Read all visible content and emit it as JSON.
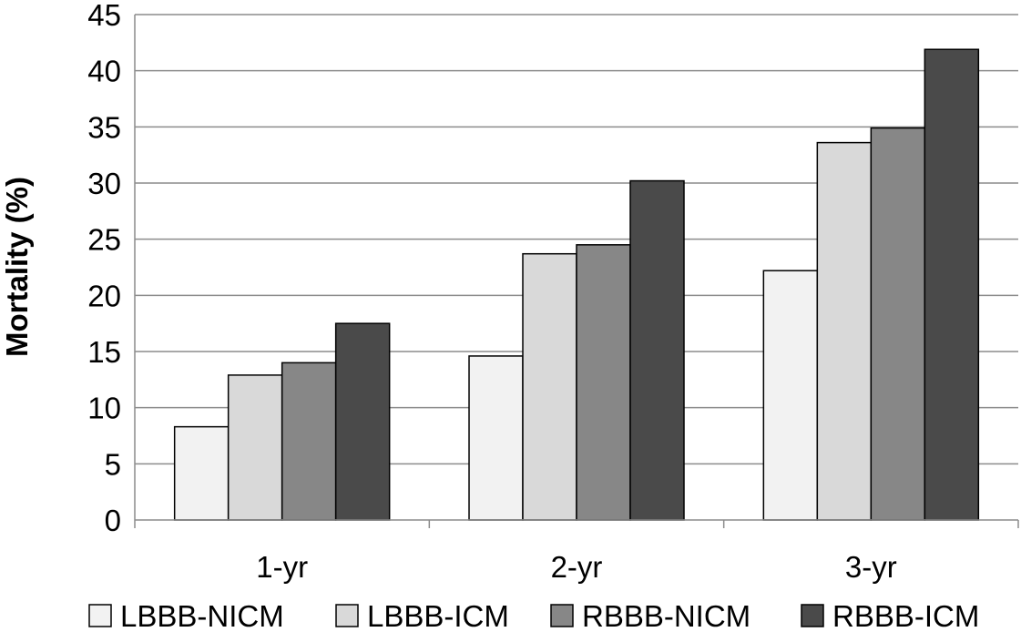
{
  "chart_data": {
    "type": "bar",
    "title": "",
    "xlabel": "",
    "ylabel": "Mortality (%)",
    "ylim": [
      0,
      45
    ],
    "yticks": [
      0,
      5,
      10,
      15,
      20,
      25,
      30,
      35,
      40,
      45
    ],
    "grid": true,
    "legend_position": "bottom",
    "categories": [
      "1-yr",
      "2-yr",
      "3-yr"
    ],
    "series": [
      {
        "name": "LBBB-NICM",
        "color": "#f2f2f2",
        "values": [
          8.3,
          14.6,
          22.2
        ]
      },
      {
        "name": "LBBB-ICM",
        "color": "#d9d9d9",
        "values": [
          12.9,
          23.7,
          33.6
        ]
      },
      {
        "name": "RBBB-NICM",
        "color": "#878787",
        "values": [
          14.0,
          24.5,
          34.9
        ]
      },
      {
        "name": "RBBB-ICM",
        "color": "#4a4a4a",
        "values": [
          17.5,
          30.2,
          41.9
        ]
      }
    ]
  }
}
